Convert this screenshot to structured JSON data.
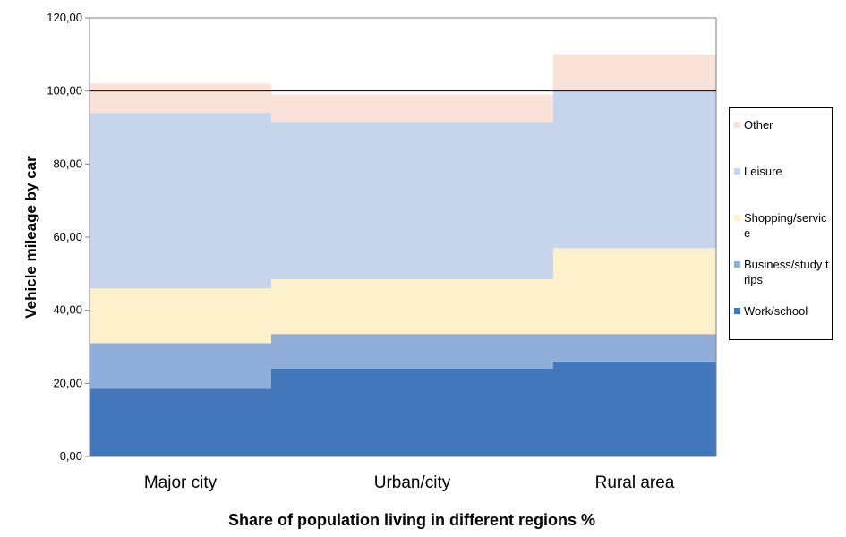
{
  "chart_data": {
    "type": "area",
    "stacked": true,
    "variable_width": true,
    "categories": [
      "Major city",
      "Urban/city",
      "Rural area"
    ],
    "category_share_bounds": [
      [
        0,
        0.29
      ],
      [
        0.29,
        0.74
      ],
      [
        0.74,
        1.0
      ]
    ],
    "series": [
      {
        "name": "Work/school",
        "color": "#4277BC",
        "values": [
          18.5,
          24,
          26
        ]
      },
      {
        "name": "Business/study trips",
        "color": "#8FAEDA",
        "values": [
          12.5,
          9.5,
          7.5
        ]
      },
      {
        "name": "Shopping/service",
        "color": "#FDF1CB",
        "values": [
          15,
          15,
          23.5
        ]
      },
      {
        "name": "Leisure",
        "color": "#C6D5EB",
        "values": [
          48,
          43,
          43
        ]
      },
      {
        "name": "Other",
        "color": "#FAE2D8",
        "values": [
          8,
          7.5,
          10
        ]
      }
    ],
    "reference_line": {
      "value": 100
    },
    "ylim": [
      0,
      120
    ],
    "yticks": [
      "0,00",
      "20,00",
      "40,00",
      "60,00",
      "80,00",
      "100,00",
      "120,00"
    ],
    "ylabel": "Vehicle mileage by car",
    "xlabel": "Share of population living in different regions %",
    "legend_position": "right",
    "grid": false
  },
  "legend": {
    "items": [
      {
        "label": "Other",
        "color": "#FAE2D8"
      },
      {
        "label": "Leisure",
        "color": "#C6D5EB"
      },
      {
        "label": "Shopping/service",
        "color": "#FDF1CB"
      },
      {
        "label": "Business/study trips",
        "color": "#8FAEDA"
      },
      {
        "label": "Work/school",
        "color": "#4277BC"
      }
    ]
  }
}
